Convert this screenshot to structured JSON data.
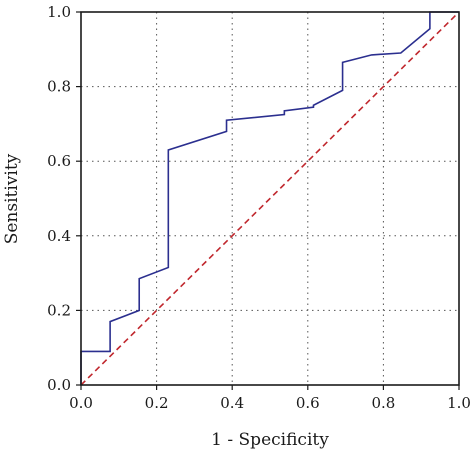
{
  "chart_data": {
    "type": "line",
    "xlabel": "1 - Specificity",
    "ylabel": "Sensitivity",
    "xlim": [
      0,
      1
    ],
    "ylim": [
      0,
      1
    ],
    "x_ticks": [
      "0.0",
      "0.2",
      "0.4",
      "0.6",
      "0.8",
      "1.0"
    ],
    "y_ticks": [
      "0.0",
      "0.2",
      "0.4",
      "0.6",
      "0.8",
      "1.0"
    ],
    "grid": "dotted",
    "legend": "none",
    "series": [
      {
        "color": "#2b2f8f",
        "style": "solid",
        "x": [
          0.0,
          0.0,
          0.077,
          0.077,
          0.154,
          0.154,
          0.231,
          0.231,
          0.385,
          0.385,
          0.538,
          0.538,
          0.615,
          0.615,
          0.692,
          0.692,
          0.769,
          0.846,
          0.923,
          0.923,
          1.0
        ],
        "y": [
          0.0,
          0.09,
          0.09,
          0.17,
          0.2,
          0.285,
          0.315,
          0.63,
          0.68,
          0.71,
          0.725,
          0.735,
          0.745,
          0.75,
          0.79,
          0.865,
          0.885,
          0.89,
          0.955,
          1.0,
          1.0
        ]
      },
      {
        "color": "#c0272d",
        "style": "dashed",
        "x": [
          0,
          1
        ],
        "y": [
          0,
          1
        ]
      }
    ]
  }
}
